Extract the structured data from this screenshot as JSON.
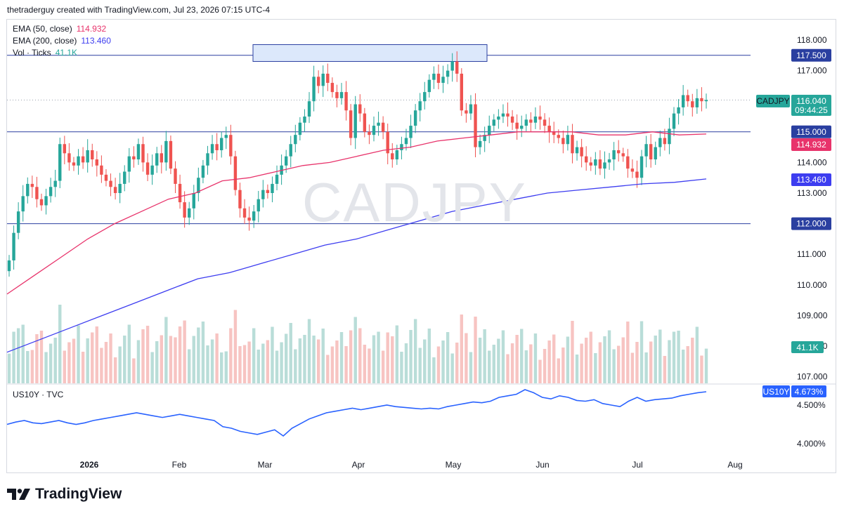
{
  "header": {
    "text": "thetraderguy created with TradingView.com, Jul 23, 2026 07:15 UTC-4"
  },
  "watermark": "CADJPY",
  "logo": {
    "text": "TradingView"
  },
  "legend": {
    "ema50": {
      "label": "EMA (50, close)",
      "value": "114.932",
      "color": "#e8336b"
    },
    "ema200": {
      "label": "EMA (200, close)",
      "value": "113.460",
      "color": "#3d3df0"
    },
    "vol": {
      "label": "Vol · Ticks",
      "value": "41.1K",
      "color": "#26a69a"
    },
    "us10y": {
      "label": "US10Y · TVC"
    }
  },
  "price_tags": {
    "symbol": {
      "name": "CADJPY",
      "price": "116.040",
      "countdown": "09:44:25",
      "bg": "#26a69a"
    },
    "level_117_5": "117.500",
    "level_115": "115.000",
    "level_112": "112.000",
    "ema50": "114.932",
    "ema200": "113.460",
    "volume": "41.1K",
    "us10y_name": "US10Y",
    "us10y_value": "4.673%"
  },
  "colors": {
    "up": "#26a69a",
    "down": "#ef5350",
    "up_vol": "#b9ddd8",
    "down_vol": "#f7c4c2",
    "hline": "#2a3fa0",
    "us10y": "#2962ff",
    "zone_fill": "#dce8fb",
    "zone_border": "#2a3fa0"
  },
  "chart_data": {
    "type": "candlestick",
    "symbol": "CADJPY",
    "y_ticks": [
      "118.000",
      "117.000",
      "116.000",
      "115.000",
      "114.000",
      "113.000",
      "112.000",
      "111.000",
      "110.000",
      "109.000",
      "108.000",
      "107.000"
    ],
    "y_range": [
      106.75,
      118.4
    ],
    "x_ticks": [
      "2026",
      "Feb",
      "Mar",
      "Apr",
      "May",
      "Jun",
      "Jul",
      "Aug"
    ],
    "last_price": 116.04,
    "horizontal_lines": [
      117.5,
      115.0,
      112.0
    ],
    "resistance_zone": {
      "from": 117.3,
      "to": 117.85,
      "start": "Mar 2026",
      "end": "May 2026"
    },
    "series": [
      {
        "name": "CADJPY",
        "close": [
          110.8,
          111.7,
          112.4,
          112.9,
          113.3,
          113.2,
          112.8,
          112.6,
          112.9,
          113.2,
          113.4,
          114.6,
          114.3,
          114.0,
          113.9,
          114.2,
          114.0,
          114.4,
          114.1,
          113.9,
          113.6,
          113.4,
          113.2,
          113.0,
          113.3,
          113.7,
          114.2,
          114.1,
          114.6,
          114.0,
          113.6,
          113.9,
          114.3,
          114.0,
          114.7,
          113.8,
          113.3,
          112.7,
          112.2,
          112.5,
          113.0,
          113.5,
          113.9,
          114.3,
          114.6,
          114.4,
          114.8,
          114.9,
          114.2,
          113.1,
          112.5,
          112.2,
          112.1,
          112.4,
          112.8,
          113.1,
          113.0,
          113.3,
          113.6,
          113.9,
          114.2,
          114.6,
          114.9,
          115.3,
          115.5,
          116.0,
          116.8,
          116.5,
          116.9,
          116.6,
          116.3,
          116.1,
          116.3,
          115.7,
          114.8,
          115.9,
          115.6,
          115.0,
          114.9,
          115.2,
          115.3,
          115.0,
          114.3,
          114.1,
          114.4,
          114.6,
          114.8,
          115.2,
          115.7,
          116.0,
          116.3,
          116.7,
          116.9,
          116.6,
          116.8,
          117.0,
          117.3,
          116.9,
          115.7,
          115.6,
          115.9,
          114.5,
          114.7,
          114.9,
          115.2,
          115.4,
          115.5,
          115.6,
          115.5,
          115.3,
          115.1,
          115.2,
          115.4,
          115.3,
          115.5,
          115.4,
          115.2,
          115.0,
          114.9,
          114.8,
          114.6,
          114.9,
          114.3,
          114.5,
          114.2,
          114.0,
          113.9,
          114.1,
          113.8,
          114.0,
          114.1,
          114.4,
          114.3,
          114.2,
          113.8,
          113.7,
          113.5,
          114.2,
          114.6,
          114.1,
          114.5,
          114.8,
          114.6,
          115.1,
          115.6,
          115.8,
          116.2,
          116.0,
          115.8,
          116.1,
          116.0,
          116.04
        ]
      },
      {
        "name": "EMA (50, close)",
        "values": [
          109.7,
          110.3,
          110.9,
          111.5,
          112.0,
          112.4,
          112.8,
          113.0,
          113.4,
          113.5,
          113.7,
          113.9,
          114.0,
          114.2,
          114.4,
          114.5,
          114.7,
          114.8,
          114.9,
          115.0,
          115.0,
          115.0,
          114.9,
          114.9,
          115.0,
          114.9,
          114.93
        ]
      },
      {
        "name": "EMA (200, close)",
        "values": [
          107.8,
          108.2,
          108.6,
          109.0,
          109.4,
          109.8,
          110.2,
          110.4,
          110.7,
          111.0,
          111.3,
          111.5,
          111.8,
          112.1,
          112.4,
          112.6,
          112.8,
          113.0,
          113.1,
          113.2,
          113.3,
          113.35,
          113.46
        ]
      },
      {
        "name": "Vol · Ticks",
        "last": "41.1K"
      },
      {
        "name": "US10Y",
        "y_ticks": [
          "4.500%",
          "4.000%"
        ],
        "y_range": [
          3.85,
          4.73
        ],
        "values": [
          4.25,
          4.28,
          4.3,
          4.27,
          4.26,
          4.28,
          4.3,
          4.27,
          4.25,
          4.27,
          4.3,
          4.32,
          4.34,
          4.36,
          4.38,
          4.4,
          4.38,
          4.36,
          4.34,
          4.36,
          4.38,
          4.36,
          4.34,
          4.32,
          4.3,
          4.22,
          4.2,
          4.16,
          4.14,
          4.12,
          4.15,
          4.18,
          4.1,
          4.2,
          4.26,
          4.32,
          4.36,
          4.4,
          4.42,
          4.44,
          4.46,
          4.44,
          4.46,
          4.48,
          4.5,
          4.48,
          4.47,
          4.46,
          4.45,
          4.46,
          4.45,
          4.48,
          4.5,
          4.52,
          4.54,
          4.53,
          4.55,
          4.6,
          4.62,
          4.64,
          4.7,
          4.66,
          4.6,
          4.58,
          4.62,
          4.6,
          4.56,
          4.55,
          4.57,
          4.52,
          4.5,
          4.48,
          4.55,
          4.6,
          4.55,
          4.57,
          4.58,
          4.59,
          4.62,
          4.64,
          4.66,
          4.673
        ]
      }
    ]
  }
}
